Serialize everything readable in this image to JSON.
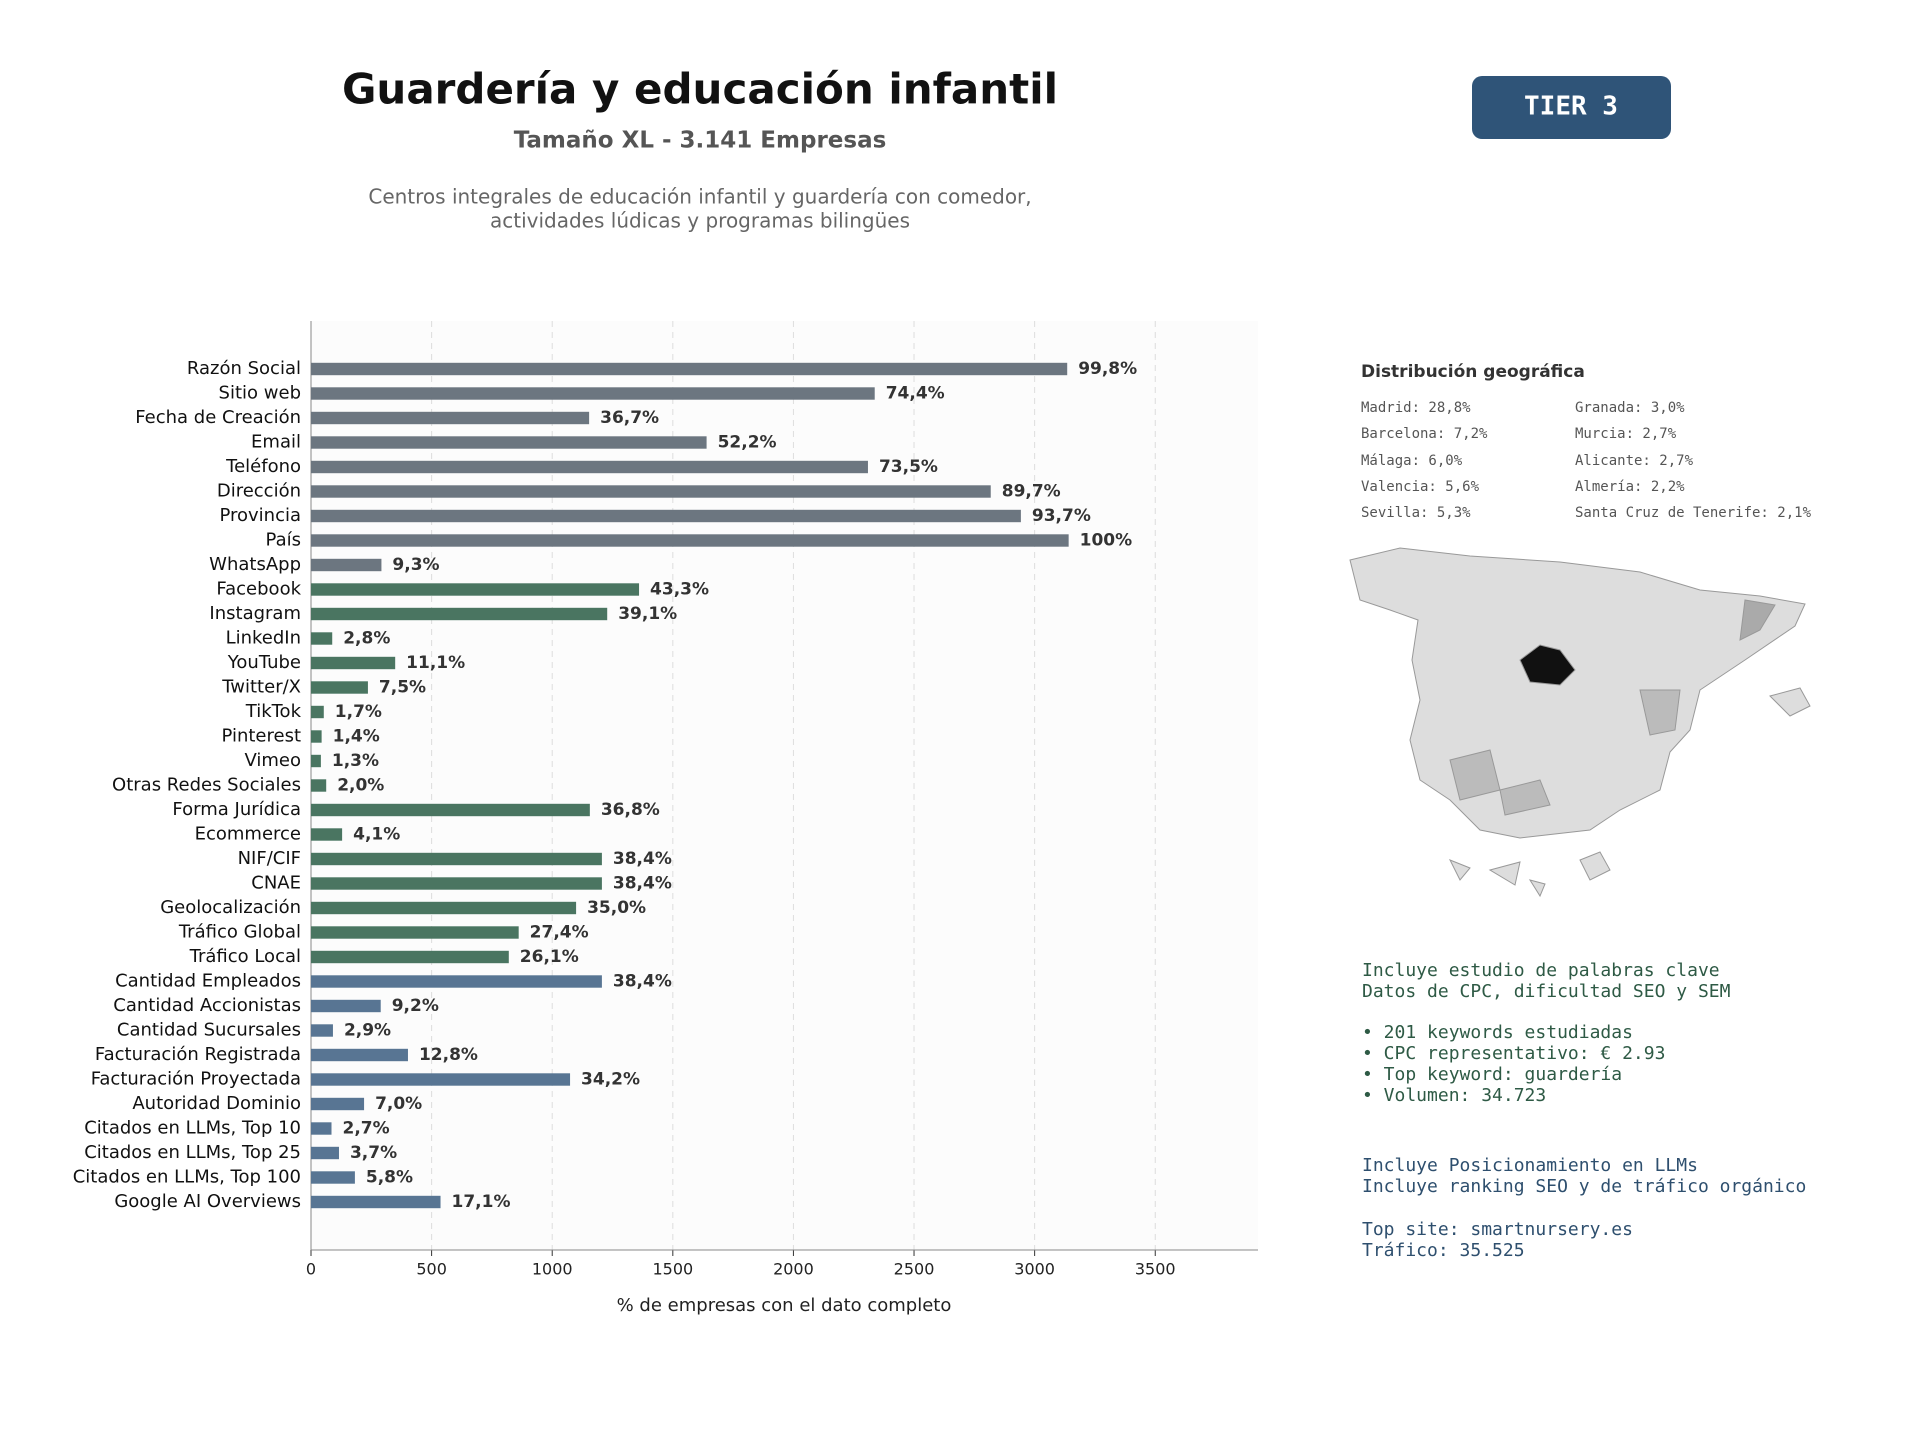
{
  "chart_data": {
    "type": "barh",
    "title": "Guardería y educación infantil",
    "subtitle": "Tamaño XL - 3.141 Empresas",
    "description": [
      "Centros integrales de educación infantil y guardería con comedor,",
      "actividades lúdicas y programas bilingües"
    ],
    "badge": "TIER 3",
    "x_label": "% de empresas con el dato completo",
    "categories": [
      "Razón Social",
      "Sitio web",
      "Fecha de Creación",
      "Email",
      "Teléfono",
      "Dirección",
      "Provincia",
      "País",
      "WhatsApp",
      "Facebook",
      "Instagram",
      "LinkedIn",
      "YouTube",
      "Twitter/X",
      "TikTok",
      "Pinterest",
      "Vimeo",
      "Otras Redes Sociales",
      "Forma Jurídica",
      "Ecommerce",
      "NIF/CIF",
      "CNAE",
      "Geolocalización",
      "Tráfico Global",
      "Tráfico Local",
      "Cantidad Empleados",
      "Cantidad Accionistas",
      "Cantidad Sucursales",
      "Facturación Registrada",
      "Facturación Proyectada",
      "Autoridad Dominio",
      "Citados en LLMs, Top 10",
      "Citados en LLMs, Top 25",
      "Citados en LLMs, Top 100",
      "Google AI Overviews"
    ],
    "values": [
      3135,
      2337,
      1153,
      1640,
      2309,
      2818,
      2943,
      3141,
      292,
      1360,
      1228,
      88,
      349,
      236,
      53,
      44,
      41,
      63,
      1156,
      129,
      1206,
      1206,
      1099,
      861,
      820,
      1206,
      289,
      91,
      402,
      1074,
      220,
      85,
      116,
      182,
      537
    ],
    "value_labels": [
      "99,8%",
      "74,4%",
      "36,7%",
      "52,2%",
      "73,5%",
      "89,7%",
      "93,7%",
      "100%",
      "9,3%",
      "43,3%",
      "39,1%",
      "2,8%",
      "11,1%",
      "7,5%",
      "1,7%",
      "1,4%",
      "1,3%",
      "2,0%",
      "36,8%",
      "4,1%",
      "38,4%",
      "38,4%",
      "35,0%",
      "27,4%",
      "26,1%",
      "38,4%",
      "9,2%",
      "2,9%",
      "12,8%",
      "34,2%",
      "7,0%",
      "2,7%",
      "3,7%",
      "5,8%",
      "17,1%"
    ],
    "colors": [
      "#6c7680",
      "#6c7680",
      "#6c7680",
      "#6c7680",
      "#6c7680",
      "#6c7680",
      "#6c7680",
      "#6c7680",
      "#6c7680",
      "#4a7561",
      "#4a7561",
      "#4a7561",
      "#4a7561",
      "#4a7561",
      "#4a7561",
      "#4a7561",
      "#4a7561",
      "#4a7561",
      "#4a7561",
      "#4a7561",
      "#4a7561",
      "#4a7561",
      "#4a7561",
      "#4a7561",
      "#4a7561",
      "#587593",
      "#587593",
      "#587593",
      "#587593",
      "#587593",
      "#587593",
      "#587593",
      "#587593",
      "#587593",
      "#587593"
    ],
    "xlim": [
      0,
      3926
    ],
    "xticks": [
      0,
      500,
      1000,
      1500,
      2000,
      2500,
      3000,
      3500
    ],
    "grid": true
  },
  "geo": {
    "title": "Distribución geográfica",
    "col1": [
      "Madrid: 28,8%",
      "Barcelona: 7,2%",
      "Málaga: 6,0%",
      "Valencia: 5,6%",
      "Sevilla: 5,3%"
    ],
    "col2": [
      "Granada: 3,0%",
      "Murcia: 2,7%",
      "Alicante: 2,7%",
      "Almería: 2,2%",
      "Santa Cruz de Tenerife: 2,1%"
    ]
  },
  "seo": {
    "lines": [
      "Incluye estudio de palabras clave",
      "Datos de CPC, dificultad SEO y SEM"
    ],
    "bullets": [
      "• 201 keywords estudiadas",
      "• CPC representativo: € 2.93",
      "• Top keyword: guardería",
      "• Volumen: 34.723"
    ]
  },
  "llm": {
    "lines": [
      "Incluye Posicionamiento en LLMs",
      "Incluye ranking SEO y de tráfico orgánico"
    ],
    "site": [
      "Top site: smartnursery.es",
      "Tráfico: 35.525"
    ]
  }
}
